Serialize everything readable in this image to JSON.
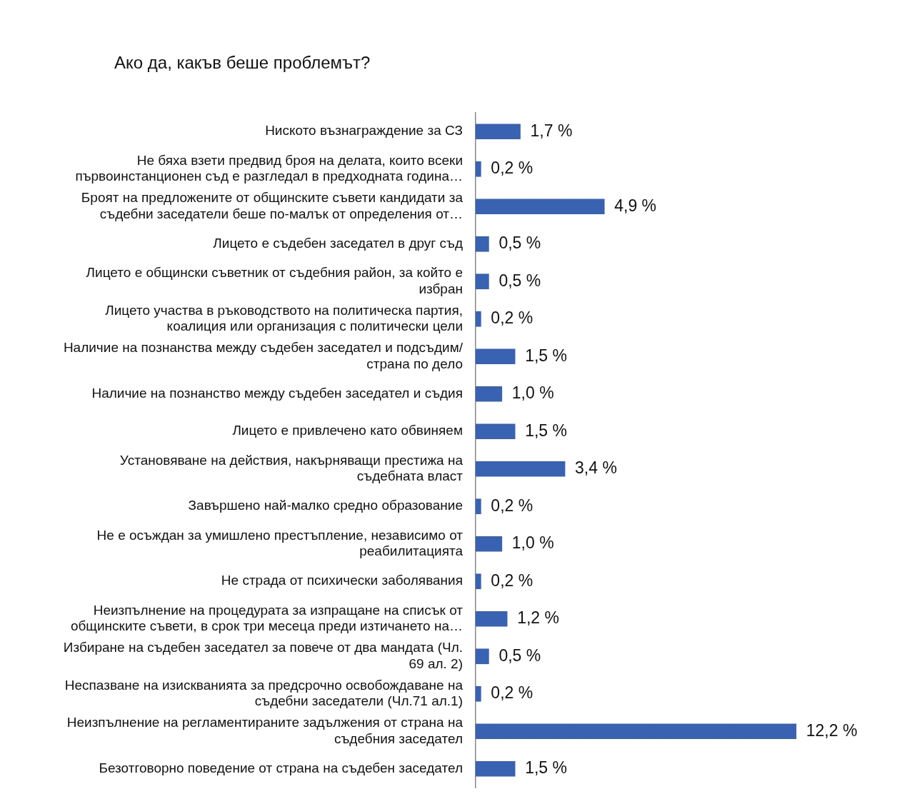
{
  "chart_data": {
    "type": "bar",
    "orientation": "horizontal",
    "title": "Ако да, какъв беше проблемът?",
    "categories": [
      "Ниското възнаграждение за СЗ",
      "Не бяха взети предвид броя на делата, които всеки първоинстанционен съд е разгледал в предходната година…",
      "Броят на предложените от общинските съвети кандидати за съдебни заседатели беше по-малък от определения от…",
      "Лицето е съдебен заседател в друг съд",
      "Лицето е общински съветник от съдебния район, за който е избран",
      "Лицето участва в ръководството на политическа партия, коалиция или организация с политически цели",
      "Наличие на познанства между съдебен заседател и подсъдим/ страна по дело",
      "Наличие на познанство между съдебен заседател и съдия",
      "Лицето е привлечено като обвиняем",
      "Установяване на действия, накърняващи престижа на съдебната власт",
      "Завършено най-малко средно образование",
      "Не е осъждан за умишлено престъпление, независимо от реабилитацията",
      "Не страда от психически заболявания",
      "Неизпълнение на процедурата за изпращане на списък от общинските съвети, в срок три месеца преди изтичането на…",
      "Избиране на съдебен заседател за повече от два мандата (Чл. 69 ал. 2)",
      "Неспазване на изискванията за предсрочно освобождаване на съдебни заседатели (Чл.71 ал.1)",
      "Неизпълнение на регламентираните задължения от страна на съдебния заседател",
      "Безотговорно поведение от страна на съдебен заседател"
    ],
    "values": [
      1.7,
      0.2,
      4.9,
      0.5,
      0.5,
      0.2,
      1.5,
      1.0,
      1.5,
      3.4,
      0.2,
      1.0,
      0.2,
      1.2,
      0.5,
      0.2,
      12.2,
      1.5
    ],
    "value_labels": [
      "1,7 %",
      "0,2 %",
      "4,9 %",
      "0,5 %",
      "0,5 %",
      "0,2 %",
      "1,5 %",
      "1,0 %",
      "1,5 %",
      "3,4 %",
      "0,2 %",
      "1,0 %",
      "0,2 %",
      "1,2 %",
      "0,5 %",
      "0,2 %",
      "12,2 %",
      "1,5 %"
    ],
    "color": "#3a62b3",
    "tick_labels": "y"
  }
}
